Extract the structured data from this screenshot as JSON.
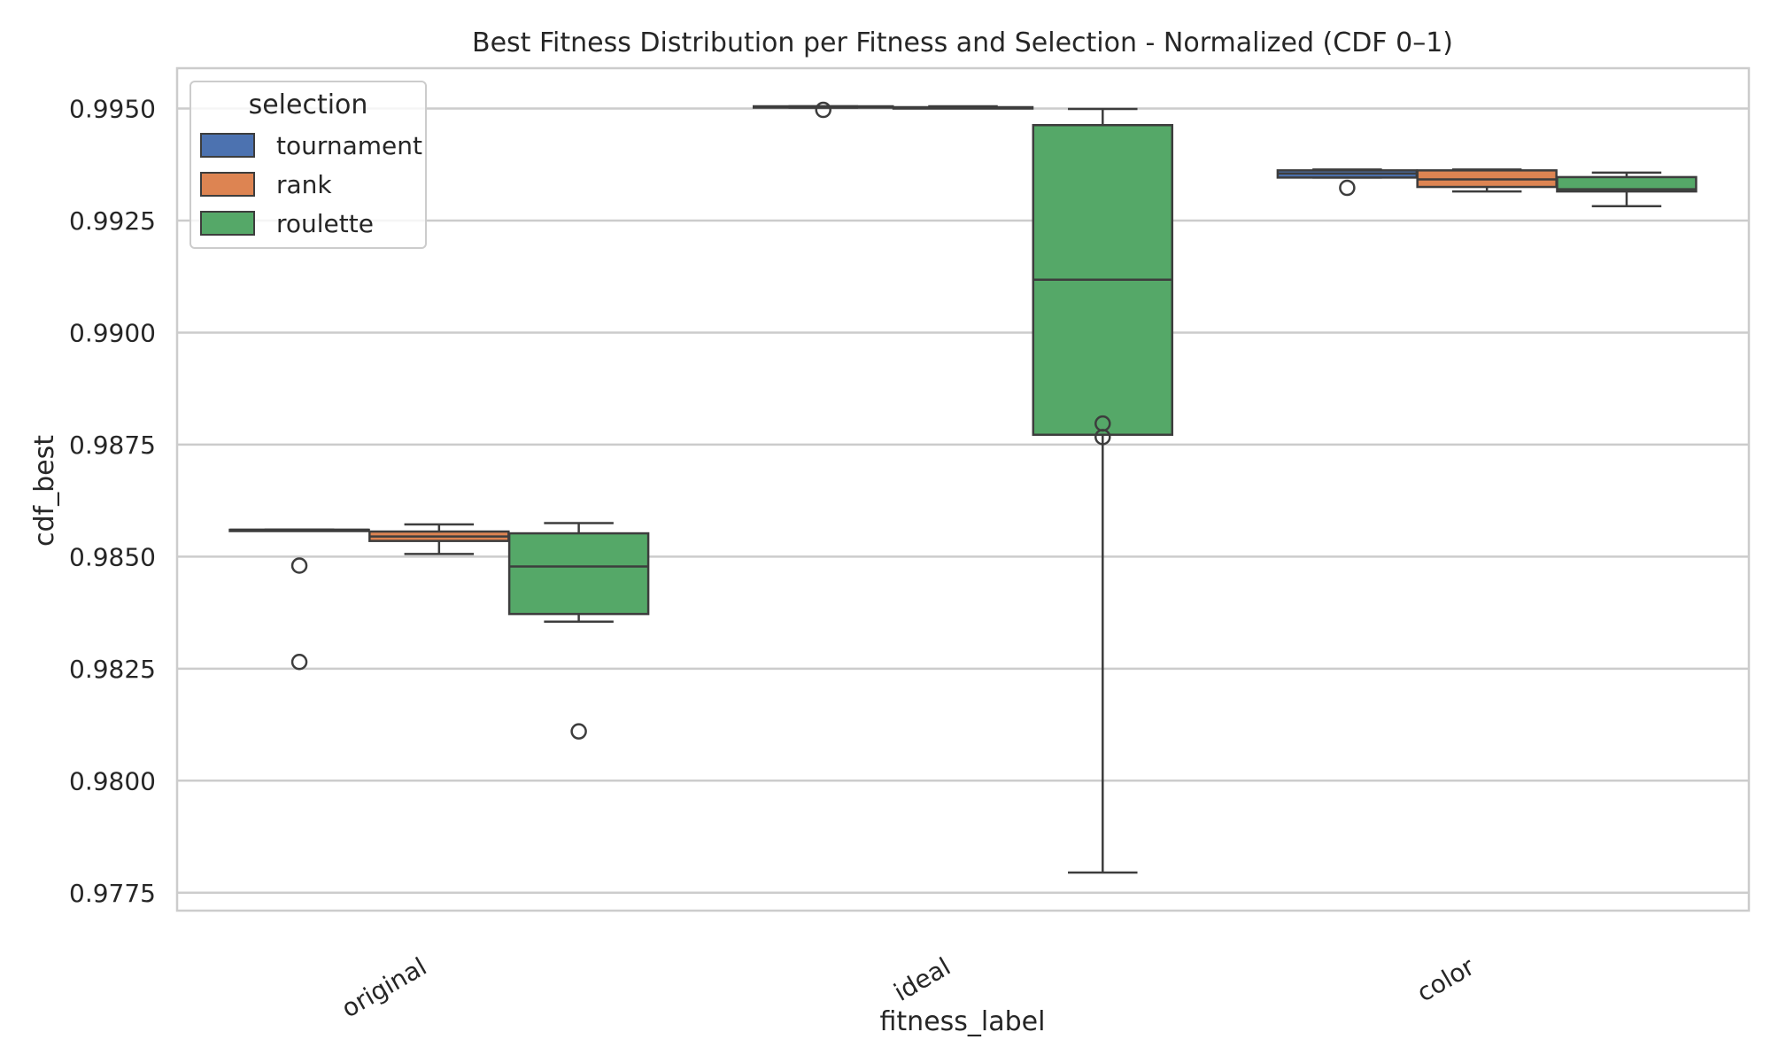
{
  "chart_data": {
    "type": "box",
    "title": "Best Fitness Distribution per Fitness and Selection - Normalized (CDF 0–1)",
    "xlabel": "fitness_label",
    "ylabel": "cdf_best",
    "categories": [
      "original",
      "ideal",
      "color"
    ],
    "ylim": [
      0.9771,
      0.9959
    ],
    "yticks": [
      "0.9775",
      "0.9800",
      "0.9825",
      "0.9850",
      "0.9875",
      "0.9900",
      "0.9925",
      "0.9950"
    ],
    "grid": true,
    "legend": {
      "title": "selection",
      "placement": "upper-left"
    },
    "series": [
      {
        "name": "tournament",
        "color": "#4c72b0",
        "boxes": [
          {
            "category": "original",
            "whisker_low": 0.9856,
            "q1": 0.9856,
            "median": 0.9856,
            "q3": 0.9856,
            "whisker_high": 0.9856,
            "outliers": [
              0.9848,
              0.98265
            ]
          },
          {
            "category": "ideal",
            "whisker_low": 0.99502,
            "q1": 0.99502,
            "median": 0.99503,
            "q3": 0.99505,
            "whisker_high": 0.99505,
            "outliers": [
              0.99497
            ]
          },
          {
            "category": "color",
            "whisker_low": 0.99346,
            "q1": 0.99346,
            "median": 0.99355,
            "q3": 0.99362,
            "whisker_high": 0.99364,
            "outliers": [
              0.99323
            ]
          }
        ]
      },
      {
        "name": "rank",
        "color": "#dd8452",
        "boxes": [
          {
            "category": "original",
            "whisker_low": 0.98506,
            "q1": 0.98535,
            "median": 0.98545,
            "q3": 0.98556,
            "whisker_high": 0.98572,
            "outliers": []
          },
          {
            "category": "ideal",
            "whisker_low": 0.99501,
            "q1": 0.99501,
            "median": 0.99502,
            "q3": 0.99503,
            "whisker_high": 0.99505,
            "outliers": []
          },
          {
            "category": "color",
            "whisker_low": 0.99315,
            "q1": 0.99325,
            "median": 0.99342,
            "q3": 0.99362,
            "whisker_high": 0.99364,
            "outliers": []
          }
        ]
      },
      {
        "name": "roulette",
        "color": "#55a868",
        "boxes": [
          {
            "category": "original",
            "whisker_low": 0.98355,
            "q1": 0.98372,
            "median": 0.98478,
            "q3": 0.98552,
            "whisker_high": 0.98575,
            "outliers": [
              0.9811
            ]
          },
          {
            "category": "ideal",
            "whisker_low": 0.97795,
            "q1": 0.98772,
            "median": 0.99118,
            "q3": 0.99463,
            "whisker_high": 0.99499,
            "outliers": [
              0.98797,
              0.98767
            ]
          },
          {
            "category": "color",
            "whisker_low": 0.99282,
            "q1": 0.99315,
            "median": 0.9932,
            "q3": 0.99347,
            "whisker_high": 0.99357,
            "outliers": []
          }
        ]
      }
    ]
  }
}
